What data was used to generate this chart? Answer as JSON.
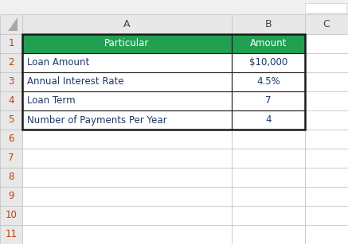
{
  "table_rows": [
    [
      "Particular",
      "Amount"
    ],
    [
      "Loan Amount",
      "$10,000"
    ],
    [
      "Annual Interest Rate",
      "4.5%"
    ],
    [
      "Loan Term",
      "7"
    ],
    [
      "Number of Payments Per Year",
      "4"
    ],
    [
      "",
      ""
    ],
    [
      "",
      ""
    ],
    [
      "",
      ""
    ],
    [
      "",
      ""
    ],
    [
      "",
      ""
    ],
    [
      "",
      ""
    ]
  ],
  "col_labels": [
    "A",
    "B",
    "C"
  ],
  "header_green": "#21A052",
  "header_text": "#FFFFFF",
  "data_text_col_a": "#1F3864",
  "data_text_col_b": "#1F3864",
  "amount_header_text": "#FFFFFF",
  "cell_bg": "#FFFFFF",
  "grid_color": "#C0C0C0",
  "row_header_bg": "#E8E8E8",
  "col_header_bg": "#E8E8E8",
  "fig_bg": "#F0F0F0",
  "border_color": "#1A1A1A",
  "white_box_top_right": "#FFFFFF",
  "figsize": [
    4.37,
    3.07
  ],
  "dpi": 100,
  "corner_tri_color": "#A8A8A8",
  "row_num_color": "#C04000"
}
